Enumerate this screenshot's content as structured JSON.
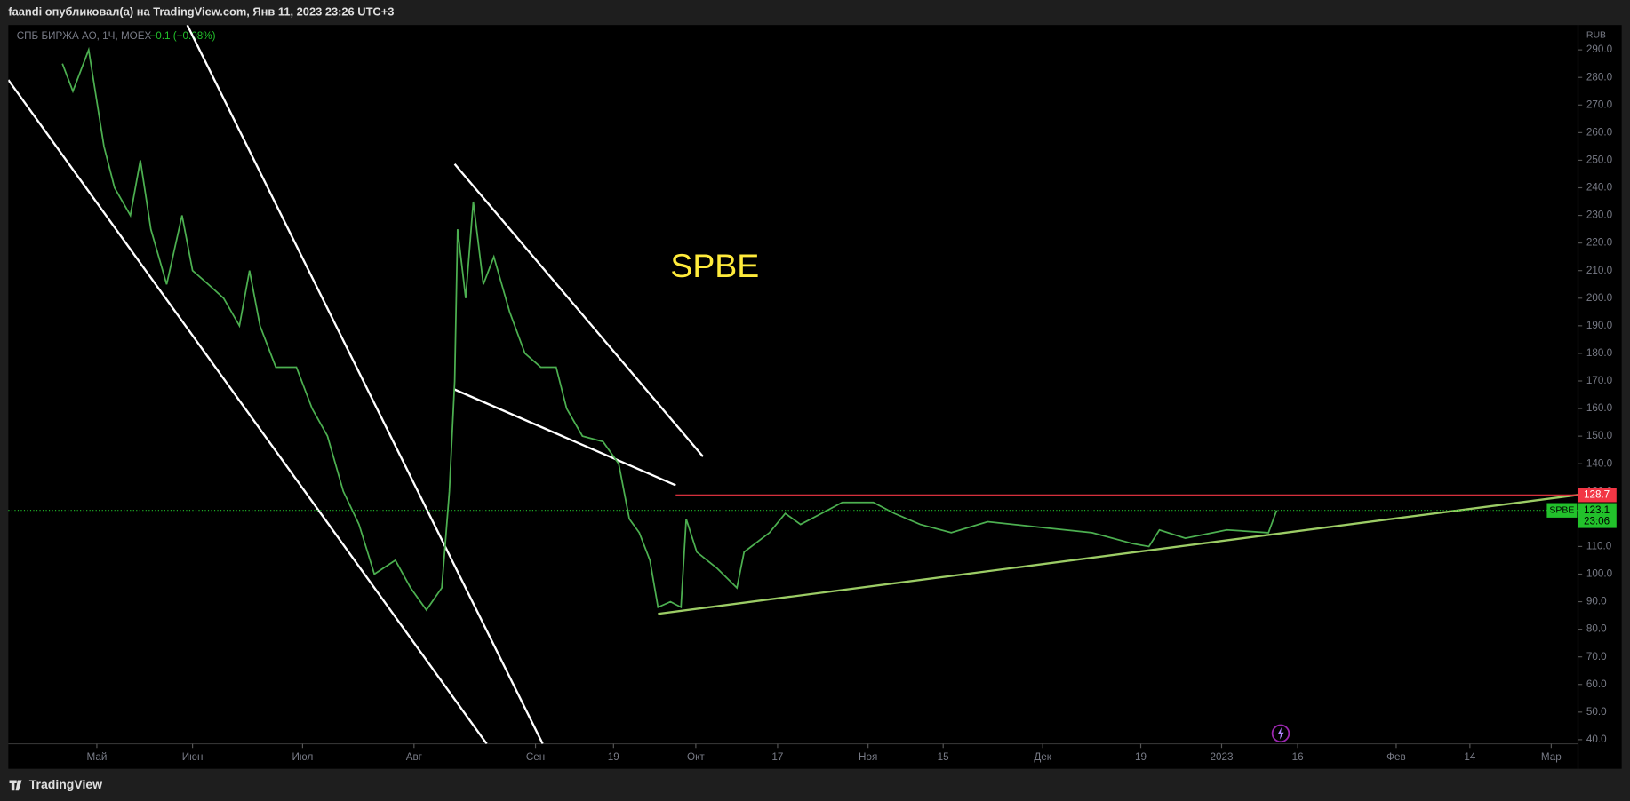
{
  "header": "faandi опубликовал(а) на TradingView.com, Янв 11, 2023 23:26 UTC+3",
  "footer_brand": "TradingView",
  "chart_data": {
    "type": "line",
    "title": "SPBE",
    "subtitle": "СПБ БИРЖА АО, 1Ч, MOEX",
    "change": "−0.1 (−0.08%)",
    "currency": "RUB",
    "x": [
      22.8,
      25.0,
      28.3,
      31.5,
      33.7,
      37.0,
      39.1,
      41.3,
      44.6,
      47.8,
      50.0,
      53.3,
      56.5,
      59.8,
      61.9,
      64.1,
      67.4,
      71.7,
      75.0,
      78.2,
      81.5,
      84.8,
      88.0,
      92.4,
      95.6,
      98.9,
      102.1,
      103.7,
      104.8,
      105.4,
      107.1,
      108.7,
      110.8,
      113.0,
      116.3,
      119.5,
      122.8,
      126.0,
      128.2,
      131.5,
      135.8,
      139.1,
      141.3,
      143.4,
      145.6,
      147.3,
      149.9,
      152.1,
      153.2,
      155.4,
      159.7,
      163.8,
      165.3,
      170.6,
      173.9,
      177.1,
      181.5,
      185.8,
      192.3,
      196.7,
      202.1,
      208.6,
      216.2,
      227.1,
      238.0,
      246.6,
      249.9,
      252.1,
      257.5,
      266.2,
      274.9,
      276.6
    ],
    "series": [
      {
        "name": "SPBE",
        "color": "#4caf50",
        "values": [
          285,
          275,
          290,
          255,
          240,
          230,
          250,
          225,
          205,
          230,
          210,
          205,
          200,
          190,
          210,
          190,
          175,
          175,
          160,
          150,
          130,
          118,
          100,
          105,
          95,
          87,
          95,
          130,
          170,
          225,
          200,
          235,
          205,
          215,
          195,
          180,
          175,
          175,
          160,
          150,
          148,
          140,
          120,
          115,
          105,
          88,
          90,
          88,
          120,
          108,
          102,
          95,
          108,
          115,
          122,
          118,
          122,
          126,
          126,
          122,
          118,
          115,
          119,
          117,
          115,
          111,
          110,
          116,
          113,
          116,
          115,
          123.1
        ]
      }
    ],
    "xlim": [
      11.5,
      339.6
    ],
    "xticks": [
      {
        "value": 30,
        "label": "Май"
      },
      {
        "value": 50.0,
        "label": "Июн"
      },
      {
        "value": 73.0,
        "label": "Июл"
      },
      {
        "value": 96.3,
        "label": "Авг"
      },
      {
        "value": 121.7,
        "label": "Сен"
      },
      {
        "value": 138.0,
        "label": "19"
      },
      {
        "value": 155.2,
        "label": "Окт"
      },
      {
        "value": 172.3,
        "label": "17"
      },
      {
        "value": 191.2,
        "label": "Ноя"
      },
      {
        "value": 206.9,
        "label": "15"
      },
      {
        "value": 227.7,
        "label": "Дек"
      },
      {
        "value": 248.2,
        "label": "19"
      },
      {
        "value": 265.1,
        "label": "2023"
      },
      {
        "value": 281.0,
        "label": "16"
      },
      {
        "value": 301.6,
        "label": "Фев"
      },
      {
        "value": 317.0,
        "label": "14"
      },
      {
        "value": 334.0,
        "label": "Мар"
      }
    ],
    "ylim": [
      38.5,
      299
    ],
    "yticks": [
      {
        "value": 40,
        "label": "40.0"
      },
      {
        "value": 50,
        "label": "50.0"
      },
      {
        "value": 60,
        "label": "60.0"
      },
      {
        "value": 70,
        "label": "70.0"
      },
      {
        "value": 80,
        "label": "80.0"
      },
      {
        "value": 90,
        "label": "90.0"
      },
      {
        "value": 100,
        "label": "100.0"
      },
      {
        "value": 110,
        "label": "110.0"
      },
      {
        "value": 120,
        "label": "120.0"
      },
      {
        "value": 130,
        "label": "130.0"
      },
      {
        "value": 140,
        "label": "140.0"
      },
      {
        "value": 150,
        "label": "150.0"
      },
      {
        "value": 160,
        "label": "160.0"
      },
      {
        "value": 170,
        "label": "170.0"
      },
      {
        "value": 180,
        "label": "180.0"
      },
      {
        "value": 190,
        "label": "190.0"
      },
      {
        "value": 200,
        "label": "200.0"
      },
      {
        "value": 210,
        "label": "210.0"
      },
      {
        "value": 220,
        "label": "220.0"
      },
      {
        "value": 230,
        "label": "230.0"
      },
      {
        "value": 240,
        "label": "240.0"
      },
      {
        "value": 250,
        "label": "250.0"
      },
      {
        "value": 260,
        "label": "260.0"
      },
      {
        "value": 270,
        "label": "270.0"
      },
      {
        "value": 280,
        "label": "280.0"
      },
      {
        "value": 290,
        "label": "290.0"
      }
    ],
    "last_price": 123.1,
    "last_price_time": "23:06",
    "last_price_color": "#22c12b",
    "resistance": 128.7,
    "resistance_color": "#f23645",
    "trendlines": [
      {
        "color": "#ffffff",
        "x": [
          11.5,
          111.5
        ],
        "y": [
          279.1,
          38.5
        ]
      },
      {
        "color": "#ffffff",
        "x": [
          48.9,
          123.2
        ],
        "y": [
          299,
          38.5
        ]
      },
      {
        "color": "#ffffff",
        "x": [
          104.8,
          156.7
        ],
        "y": [
          248.6,
          142.6
        ]
      },
      {
        "color": "#ffffff",
        "x": [
          104.8,
          151.0
        ],
        "y": [
          166.9,
          132.2
        ]
      },
      {
        "color": "#9ccc65",
        "x": [
          147.3,
          339.6
        ],
        "y": [
          85.6,
          128.7
        ]
      }
    ]
  }
}
